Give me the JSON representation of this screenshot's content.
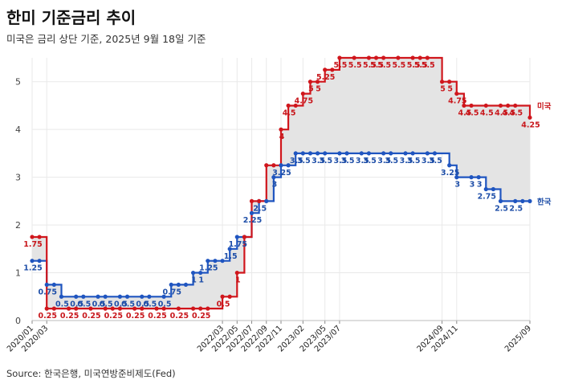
{
  "title": "한미 기준금리 추이",
  "subtitle": "미국은 금리 상단 기준, 2025년 9월 18일 기준",
  "source": "Source: 한국은행, 미국연방준비제도(Fed)",
  "colors": {
    "us": "#d0161c",
    "kr": "#1f55c0",
    "fill": "#e4e4e4",
    "grid": "#e9e9e9"
  },
  "chart_data": {
    "type": "line",
    "step": true,
    "title": "한미 기준금리 추이",
    "xlabel": "",
    "ylabel": "",
    "ylim": [
      0,
      5.5
    ],
    "y_ticks": [
      0,
      1,
      2,
      3,
      4,
      5
    ],
    "x_tick_labels": [
      "2020/01",
      "2020/03",
      "2022/03",
      "2022/05",
      "2022/07",
      "2022/09",
      "2022/11",
      "2023/02",
      "2023/05",
      "2023/07",
      "2024/09",
      "2024/11",
      "2025/09"
    ],
    "legend": "right-end labels",
    "grid": true,
    "series": [
      {
        "name": "미국",
        "values": [
          {
            "x": "2020/01",
            "y": 1.75
          },
          {
            "x": "2020/02",
            "y": 1.75
          },
          {
            "x": "2020/03",
            "y": 0.25
          },
          {
            "x": "2020/04",
            "y": 0.25
          },
          {
            "x": "2020/06",
            "y": 0.25
          },
          {
            "x": "2020/07",
            "y": 0.25
          },
          {
            "x": "2020/09",
            "y": 0.25
          },
          {
            "x": "2020/11",
            "y": 0.25
          },
          {
            "x": "2020/12",
            "y": 0.25
          },
          {
            "x": "2021/01",
            "y": 0.25
          },
          {
            "x": "2021/03",
            "y": 0.25
          },
          {
            "x": "2021/04",
            "y": 0.25
          },
          {
            "x": "2021/06",
            "y": 0.25
          },
          {
            "x": "2021/07",
            "y": 0.25
          },
          {
            "x": "2021/09",
            "y": 0.25
          },
          {
            "x": "2021/11",
            "y": 0.25
          },
          {
            "x": "2021/12",
            "y": 0.25
          },
          {
            "x": "2022/01",
            "y": 0.25
          },
          {
            "x": "2022/03",
            "y": 0.5
          },
          {
            "x": "2022/04",
            "y": 0.5
          },
          {
            "x": "2022/05",
            "y": 1.0
          },
          {
            "x": "2022/06",
            "y": 1.75
          },
          {
            "x": "2022/07",
            "y": 2.5
          },
          {
            "x": "2022/08",
            "y": 2.5
          },
          {
            "x": "2022/09",
            "y": 3.25
          },
          {
            "x": "2022/10",
            "y": 3.25
          },
          {
            "x": "2022/11",
            "y": 4.0
          },
          {
            "x": "2022/12",
            "y": 4.5
          },
          {
            "x": "2023/01",
            "y": 4.5
          },
          {
            "x": "2023/02",
            "y": 4.75
          },
          {
            "x": "2023/03",
            "y": 5.0
          },
          {
            "x": "2023/04",
            "y": 5.0
          },
          {
            "x": "2023/05",
            "y": 5.25
          },
          {
            "x": "2023/06",
            "y": 5.25
          },
          {
            "x": "2023/07",
            "y": 5.5
          },
          {
            "x": "2023/09",
            "y": 5.5
          },
          {
            "x": "2023/11",
            "y": 5.5
          },
          {
            "x": "2023/12",
            "y": 5.5
          },
          {
            "x": "2024/01",
            "y": 5.5
          },
          {
            "x": "2024/03",
            "y": 5.5
          },
          {
            "x": "2024/05",
            "y": 5.5
          },
          {
            "x": "2024/06",
            "y": 5.5
          },
          {
            "x": "2024/07",
            "y": 5.5
          },
          {
            "x": "2024/09",
            "y": 5.0
          },
          {
            "x": "2024/10",
            "y": 5.0
          },
          {
            "x": "2024/11",
            "y": 4.75
          },
          {
            "x": "2024/12",
            "y": 4.5
          },
          {
            "x": "2025/01",
            "y": 4.5
          },
          {
            "x": "2025/03",
            "y": 4.5
          },
          {
            "x": "2025/05",
            "y": 4.5
          },
          {
            "x": "2025/06",
            "y": 4.5
          },
          {
            "x": "2025/07",
            "y": 4.5
          },
          {
            "x": "2025/09",
            "y": 4.25
          }
        ]
      },
      {
        "name": "한국",
        "values": [
          {
            "x": "2020/01",
            "y": 1.25
          },
          {
            "x": "2020/02",
            "y": 1.25
          },
          {
            "x": "2020/03",
            "y": 0.75
          },
          {
            "x": "2020/04",
            "y": 0.75
          },
          {
            "x": "2020/05",
            "y": 0.5
          },
          {
            "x": "2020/07",
            "y": 0.5
          },
          {
            "x": "2020/08",
            "y": 0.5
          },
          {
            "x": "2020/10",
            "y": 0.5
          },
          {
            "x": "2020/11",
            "y": 0.5
          },
          {
            "x": "2021/01",
            "y": 0.5
          },
          {
            "x": "2021/02",
            "y": 0.5
          },
          {
            "x": "2021/04",
            "y": 0.5
          },
          {
            "x": "2021/05",
            "y": 0.5
          },
          {
            "x": "2021/07",
            "y": 0.5
          },
          {
            "x": "2021/08",
            "y": 0.75
          },
          {
            "x": "2021/09",
            "y": 0.75
          },
          {
            "x": "2021/10",
            "y": 0.75
          },
          {
            "x": "2021/11",
            "y": 1.0
          },
          {
            "x": "2021/12",
            "y": 1.0
          },
          {
            "x": "2022/01",
            "y": 1.25
          },
          {
            "x": "2022/02",
            "y": 1.25
          },
          {
            "x": "2022/03",
            "y": 1.25
          },
          {
            "x": "2022/04",
            "y": 1.5
          },
          {
            "x": "2022/05",
            "y": 1.75
          },
          {
            "x": "2022/06",
            "y": 1.75
          },
          {
            "x": "2022/07",
            "y": 2.25
          },
          {
            "x": "2022/08",
            "y": 2.5
          },
          {
            "x": "2022/09",
            "y": 2.5
          },
          {
            "x": "2022/10",
            "y": 3.0
          },
          {
            "x": "2022/11",
            "y": 3.25
          },
          {
            "x": "2022/12",
            "y": 3.25
          },
          {
            "x": "2023/01",
            "y": 3.5
          },
          {
            "x": "2023/02",
            "y": 3.5
          },
          {
            "x": "2023/03",
            "y": 3.5
          },
          {
            "x": "2023/04",
            "y": 3.5
          },
          {
            "x": "2023/05",
            "y": 3.5
          },
          {
            "x": "2023/07",
            "y": 3.5
          },
          {
            "x": "2023/08",
            "y": 3.5
          },
          {
            "x": "2023/10",
            "y": 3.5
          },
          {
            "x": "2023/11",
            "y": 3.5
          },
          {
            "x": "2024/01",
            "y": 3.5
          },
          {
            "x": "2024/02",
            "y": 3.5
          },
          {
            "x": "2024/04",
            "y": 3.5
          },
          {
            "x": "2024/05",
            "y": 3.5
          },
          {
            "x": "2024/07",
            "y": 3.5
          },
          {
            "x": "2024/08",
            "y": 3.5
          },
          {
            "x": "2024/10",
            "y": 3.25
          },
          {
            "x": "2024/11",
            "y": 3.0
          },
          {
            "x": "2025/01",
            "y": 3.0
          },
          {
            "x": "2025/02",
            "y": 3.0
          },
          {
            "x": "2025/03",
            "y": 2.75
          },
          {
            "x": "2025/04",
            "y": 2.75
          },
          {
            "x": "2025/05",
            "y": 2.5
          },
          {
            "x": "2025/07",
            "y": 2.5
          },
          {
            "x": "2025/08",
            "y": 2.5
          },
          {
            "x": "2025/09",
            "y": 2.5
          }
        ]
      }
    ],
    "data_labels": {
      "us": [
        {
          "x": "2020/01",
          "y": 1.75,
          "text": "1.75"
        },
        {
          "x": "2020/03",
          "y": 0.25,
          "text": "0.25"
        },
        {
          "x": "2020/06",
          "y": 0.25,
          "text": "0.25"
        },
        {
          "x": "2020/09",
          "y": 0.25,
          "text": "0.25"
        },
        {
          "x": "2020/12",
          "y": 0.25,
          "text": "0.25"
        },
        {
          "x": "2021/03",
          "y": 0.25,
          "text": "0.25"
        },
        {
          "x": "2021/06",
          "y": 0.25,
          "text": "0.25"
        },
        {
          "x": "2021/09",
          "y": 0.25,
          "text": "0.25"
        },
        {
          "x": "2021/12",
          "y": 0.25,
          "text": "0.25"
        },
        {
          "x": "2022/03",
          "y": 0.5,
          "text": "0.5"
        },
        {
          "x": "2022/05",
          "y": 1.0,
          "text": "1"
        },
        {
          "x": "2022/11",
          "y": 4.0,
          "text": "4"
        },
        {
          "x": "2022/12",
          "y": 4.5,
          "text": "4.5"
        },
        {
          "x": "2023/02",
          "y": 4.75,
          "text": "4.75"
        },
        {
          "x": "2023/03",
          "y": 5.0,
          "text": "5"
        },
        {
          "x": "2023/04",
          "y": 5.0,
          "text": "5"
        },
        {
          "x": "2023/05",
          "y": 5.25,
          "text": "5.25"
        },
        {
          "x": "2023/07",
          "y": 5.5,
          "text": "5.5"
        },
        {
          "x": "2023/09",
          "y": 5.5,
          "text": "5.5"
        },
        {
          "x": "2023/11",
          "y": 5.5,
          "text": "5.5"
        },
        {
          "x": "2023/12",
          "y": 5.5,
          "text": "5.5"
        },
        {
          "x": "2024/01",
          "y": 5.5,
          "text": "5.5"
        },
        {
          "x": "2024/03",
          "y": 5.5,
          "text": "5.5"
        },
        {
          "x": "2024/05",
          "y": 5.5,
          "text": "5.5"
        },
        {
          "x": "2024/06",
          "y": 5.5,
          "text": "5.5"
        },
        {
          "x": "2024/07",
          "y": 5.5,
          "text": "5.5"
        },
        {
          "x": "2024/09",
          "y": 5.0,
          "text": "5"
        },
        {
          "x": "2024/10",
          "y": 5.0,
          "text": "5"
        },
        {
          "x": "2024/11",
          "y": 4.75,
          "text": "4.75"
        },
        {
          "x": "2024/12",
          "y": 4.5,
          "text": "4.5"
        },
        {
          "x": "2025/01",
          "y": 4.5,
          "text": "4.5"
        },
        {
          "x": "2025/03",
          "y": 4.5,
          "text": "4.5"
        },
        {
          "x": "2025/05",
          "y": 4.5,
          "text": "4.5"
        },
        {
          "x": "2025/06",
          "y": 4.5,
          "text": "4.5"
        },
        {
          "x": "2025/07",
          "y": 4.5,
          "text": "4.5"
        },
        {
          "x": "2025/09",
          "y": 4.25,
          "text": "4.25"
        }
      ],
      "kr": [
        {
          "x": "2020/01",
          "y": 1.25,
          "text": "1.25"
        },
        {
          "x": "2020/03",
          "y": 0.75,
          "text": "0.75"
        },
        {
          "x": "2020/05",
          "y": 0.5,
          "text": "0.5"
        },
        {
          "x": "2020/07",
          "y": 0.5,
          "text": "0.5"
        },
        {
          "x": "2020/08",
          "y": 0.5,
          "text": "0.5"
        },
        {
          "x": "2020/10",
          "y": 0.5,
          "text": "0.5"
        },
        {
          "x": "2020/11",
          "y": 0.5,
          "text": "0.5"
        },
        {
          "x": "2021/01",
          "y": 0.5,
          "text": "0.5"
        },
        {
          "x": "2021/02",
          "y": 0.5,
          "text": "0.5"
        },
        {
          "x": "2021/04",
          "y": 0.5,
          "text": "0.5"
        },
        {
          "x": "2021/05",
          "y": 0.5,
          "text": "0.5"
        },
        {
          "x": "2021/07",
          "y": 0.5,
          "text": "0.5"
        },
        {
          "x": "2021/08",
          "y": 0.75,
          "text": "0.75"
        },
        {
          "x": "2021/11",
          "y": 1.0,
          "text": "1"
        },
        {
          "x": "2021/12",
          "y": 1.0,
          "text": "1"
        },
        {
          "x": "2022/01",
          "y": 1.25,
          "text": "1.25"
        },
        {
          "x": "2022/04",
          "y": 1.5,
          "text": "1.5"
        },
        {
          "x": "2022/05",
          "y": 1.75,
          "text": "1.75"
        },
        {
          "x": "2022/07",
          "y": 2.25,
          "text": "2.25"
        },
        {
          "x": "2022/08",
          "y": 2.5,
          "text": "2.5"
        },
        {
          "x": "2022/10",
          "y": 3.0,
          "text": "3"
        },
        {
          "x": "2022/11",
          "y": 3.25,
          "text": "3.25"
        },
        {
          "x": "2023/01",
          "y": 3.5,
          "text": "3.5"
        },
        {
          "x": "2023/02",
          "y": 3.5,
          "text": "3.5"
        },
        {
          "x": "2023/04",
          "y": 3.5,
          "text": "3.5"
        },
        {
          "x": "2023/05",
          "y": 3.5,
          "text": "3.5"
        },
        {
          "x": "2023/07",
          "y": 3.5,
          "text": "3.5"
        },
        {
          "x": "2023/08",
          "y": 3.5,
          "text": "3.5"
        },
        {
          "x": "2023/10",
          "y": 3.5,
          "text": "3.5"
        },
        {
          "x": "2023/11",
          "y": 3.5,
          "text": "3.5"
        },
        {
          "x": "2024/01",
          "y": 3.5,
          "text": "3.5"
        },
        {
          "x": "2024/02",
          "y": 3.5,
          "text": "3.5"
        },
        {
          "x": "2024/04",
          "y": 3.5,
          "text": "3.5"
        },
        {
          "x": "2024/05",
          "y": 3.5,
          "text": "3.5"
        },
        {
          "x": "2024/07",
          "y": 3.5,
          "text": "3.5"
        },
        {
          "x": "2024/08",
          "y": 3.5,
          "text": "3.5"
        },
        {
          "x": "2024/10",
          "y": 3.25,
          "text": "3.25"
        },
        {
          "x": "2024/11",
          "y": 3.0,
          "text": "3"
        },
        {
          "x": "2025/01",
          "y": 3.0,
          "text": "3"
        },
        {
          "x": "2025/02",
          "y": 3.0,
          "text": "3"
        },
        {
          "x": "2025/03",
          "y": 2.75,
          "text": "2.75"
        },
        {
          "x": "2025/05",
          "y": 2.5,
          "text": "2.5"
        },
        {
          "x": "2025/07",
          "y": 2.5,
          "text": "2.5"
        }
      ]
    },
    "end_labels": {
      "us": "미국",
      "kr": "한국"
    }
  }
}
